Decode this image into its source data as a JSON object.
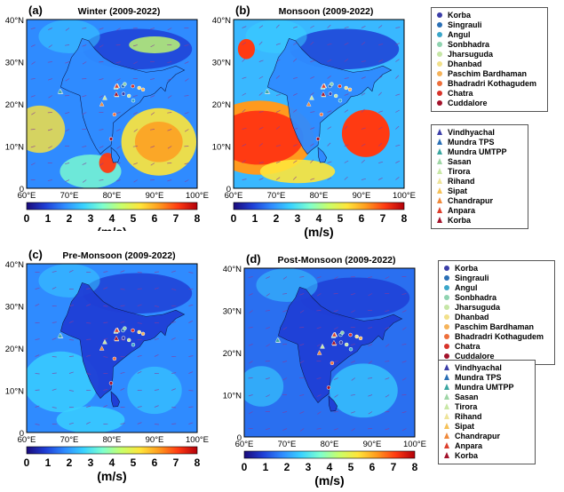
{
  "panels": [
    {
      "label": "(a)",
      "title": "Winter (2009-2022)"
    },
    {
      "label": "(b)",
      "title": "Monsoon (2009-2022)"
    },
    {
      "label": "(c)",
      "title": "Pre-Monsoon (2009-2022)"
    },
    {
      "label": "(d)",
      "title": "Post-Monsoon (2009-2022)"
    }
  ],
  "lat_ticks": [
    "40°N",
    "30°N",
    "20°N",
    "10°N",
    "0"
  ],
  "lon_ticks": [
    "60°E",
    "70°E",
    "80°E",
    "90°E",
    "100°E"
  ],
  "colorbar": {
    "ticks": [
      "0",
      "1",
      "2",
      "3",
      "4",
      "5",
      "6",
      "7",
      "8"
    ],
    "unit": "(m/s)",
    "min": 0,
    "max": 8,
    "colors": [
      "#1a0a7a",
      "#1f3fd6",
      "#2f8bff",
      "#39d2ff",
      "#7dffd0",
      "#c8ff6a",
      "#ffe53a",
      "#ff9a1e",
      "#ff3a12",
      "#b3000a"
    ]
  },
  "legend_power_plants": [
    {
      "name": "Korba",
      "color": "#3b3ea8"
    },
    {
      "name": "Singrauli",
      "color": "#2a6fb5"
    },
    {
      "name": "Angul",
      "color": "#3aa6c9"
    },
    {
      "name": "Sonbhadra",
      "color": "#8fd3b0"
    },
    {
      "name": "Jharsuguda",
      "color": "#c6e6a6"
    },
    {
      "name": "Dhanbad",
      "color": "#f2e08a"
    },
    {
      "name": "Paschim Bardhaman",
      "color": "#f6b35a"
    },
    {
      "name": "Bhadradri Kothagudem",
      "color": "#ee6f3b"
    },
    {
      "name": "Chatra",
      "color": "#d8332a"
    },
    {
      "name": "Cuddalore",
      "color": "#a3122a"
    }
  ],
  "legend_tps": [
    {
      "name": "Vindhyachal",
      "color": "#3b3ea8"
    },
    {
      "name": "Mundra TPS",
      "color": "#2a6fb5"
    },
    {
      "name": "Mundra UMTPP",
      "color": "#3aa6a0"
    },
    {
      "name": "Sasan",
      "color": "#9fd6a6"
    },
    {
      "name": "Tirora",
      "color": "#c9e8a6"
    },
    {
      "name": "Rihand",
      "color": "#efe49a"
    },
    {
      "name": "Sipat",
      "color": "#f6c25a"
    },
    {
      "name": "Chandrapur",
      "color": "#f08a3c"
    },
    {
      "name": "Anpara",
      "color": "#dd3f2c"
    },
    {
      "name": "Korba",
      "color": "#a3122a"
    }
  ]
}
